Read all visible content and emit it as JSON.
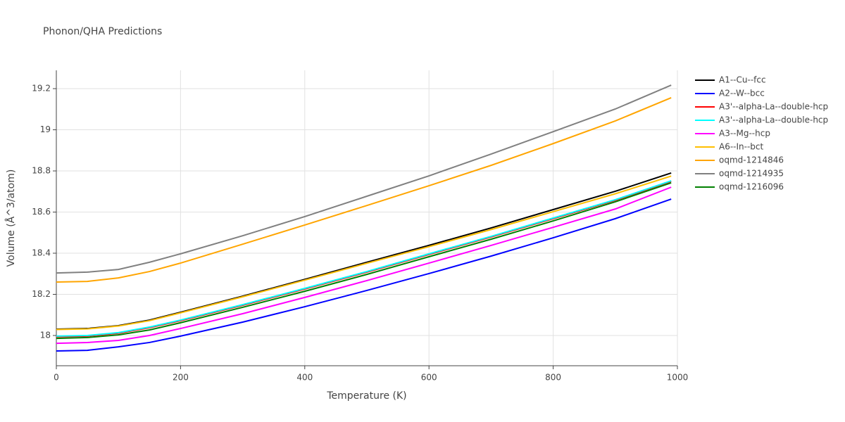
{
  "chart_data": {
    "type": "line",
    "title": "Phonon/QHA Predictions",
    "x_label": "Temperature (K)",
    "y_label": "Volume (Å^3/atom)",
    "x": [
      0,
      50,
      100,
      150,
      200,
      300,
      400,
      500,
      600,
      700,
      800,
      900,
      990
    ],
    "xlim": [
      0,
      1000
    ],
    "xticks": [
      0,
      200,
      400,
      600,
      800,
      1000
    ],
    "ylim": [
      17.853,
      19.289
    ],
    "yticks": [
      18,
      18.2,
      18.4,
      18.6,
      18.8,
      19,
      19.2
    ],
    "grid": true,
    "legend": "right",
    "series": [
      {
        "name": "A1--Cu--fcc",
        "color": "#000000",
        "values": [
          18.031,
          18.034,
          18.048,
          18.075,
          18.113,
          18.191,
          18.273,
          18.356,
          18.438,
          18.523,
          18.612,
          18.701,
          18.79
        ]
      },
      {
        "name": "A2--W--bcc",
        "color": "#0000ff",
        "values": [
          17.925,
          17.928,
          17.945,
          17.966,
          17.997,
          18.065,
          18.14,
          18.219,
          18.301,
          18.386,
          18.475,
          18.568,
          18.663
        ]
      },
      {
        "name": "A3'--alpha-La--double-hcp",
        "color": "#ff0000",
        "values": [
          17.994,
          17.997,
          18.011,
          18.038,
          18.072,
          18.147,
          18.226,
          18.308,
          18.394,
          18.479,
          18.568,
          18.657,
          18.749
        ]
      },
      {
        "name": "A3'--alpha-La--double-hcp",
        "color": "#00ffff",
        "values": [
          17.997,
          18.0,
          18.014,
          18.041,
          18.075,
          18.15,
          18.229,
          18.311,
          18.397,
          18.482,
          18.571,
          18.66,
          18.752
        ]
      },
      {
        "name": "A3--Mg--hcp",
        "color": "#ff00ff",
        "values": [
          17.962,
          17.966,
          17.976,
          18.0,
          18.034,
          18.106,
          18.185,
          18.267,
          18.352,
          18.438,
          18.526,
          18.615,
          18.721
        ]
      },
      {
        "name": "A6--In--bct",
        "color": "#ffbf00",
        "values": [
          18.029,
          18.032,
          18.046,
          18.072,
          18.11,
          18.188,
          18.269,
          18.351,
          18.432,
          18.515,
          18.602,
          18.689,
          18.775
        ]
      },
      {
        "name": "oqmd-1214846",
        "color": "#ffa500",
        "values": [
          18.26,
          18.263,
          18.28,
          18.311,
          18.352,
          18.444,
          18.537,
          18.632,
          18.728,
          18.827,
          18.933,
          19.043,
          19.156
        ]
      },
      {
        "name": "oqmd-1214935",
        "color": "#808080",
        "values": [
          18.304,
          18.308,
          18.321,
          18.356,
          18.397,
          18.485,
          18.578,
          18.677,
          18.776,
          18.882,
          18.991,
          19.101,
          19.217
        ]
      },
      {
        "name": "oqmd-1216096",
        "color": "#008000",
        "values": [
          17.986,
          17.99,
          18.003,
          18.027,
          18.062,
          18.137,
          18.215,
          18.297,
          18.383,
          18.468,
          18.557,
          18.65,
          18.742
        ]
      }
    ]
  }
}
